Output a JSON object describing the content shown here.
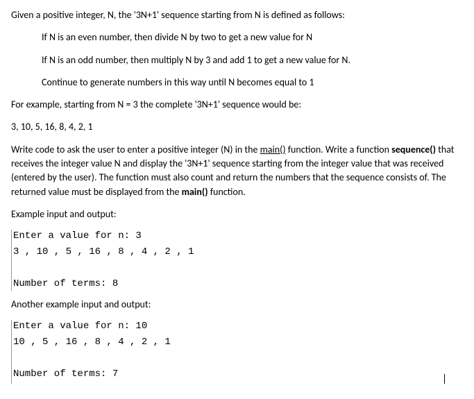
{
  "intro": "Given a positive integer, N, the '3N+1' sequence starting from N is defined as follows:",
  "rules": {
    "r1": "If N is an even number, then divide N by two to get a new value for N",
    "r2": "If N is an odd number, then multiply N by 3 and add 1 to get a new value for N.",
    "r3": "Continue to generate numbers in this way until N becomes equal to 1"
  },
  "example_intro": "For example, starting from N = 3 the complete '3N+1' sequence would be:",
  "example_seq": "3, 10, 5, 16, 8, 4, 2, 1",
  "task_prefix": "Write code to ask the user to enter a positive integer (N) in the ",
  "task_main1": "main()",
  "task_mid1": " function. Write a function ",
  "task_seqfn": "sequence()",
  "task_mid2": " that receives the integer value N and display the '3N+1' sequence starting from the integer value that was received (entered by the user). The function must also count and return the numbers that the sequence consists of. The returned value must be displayed from the ",
  "task_main2": "main()",
  "task_suffix": " function.",
  "io_label1": "Example input and output:",
  "io1": {
    "prompt": "Enter a value for n: 3",
    "seq": "3 , 10 , 5 , 16 , 8 , 4 , 2 , 1",
    "terms": "Number of terms: 8"
  },
  "io_label2": "Another example input and output:",
  "io2": {
    "prompt": "Enter a value for n: 10",
    "seq": "10 , 5 , 16 , 8 , 4 , 2 , 1",
    "terms": "Number of terms: 7"
  }
}
